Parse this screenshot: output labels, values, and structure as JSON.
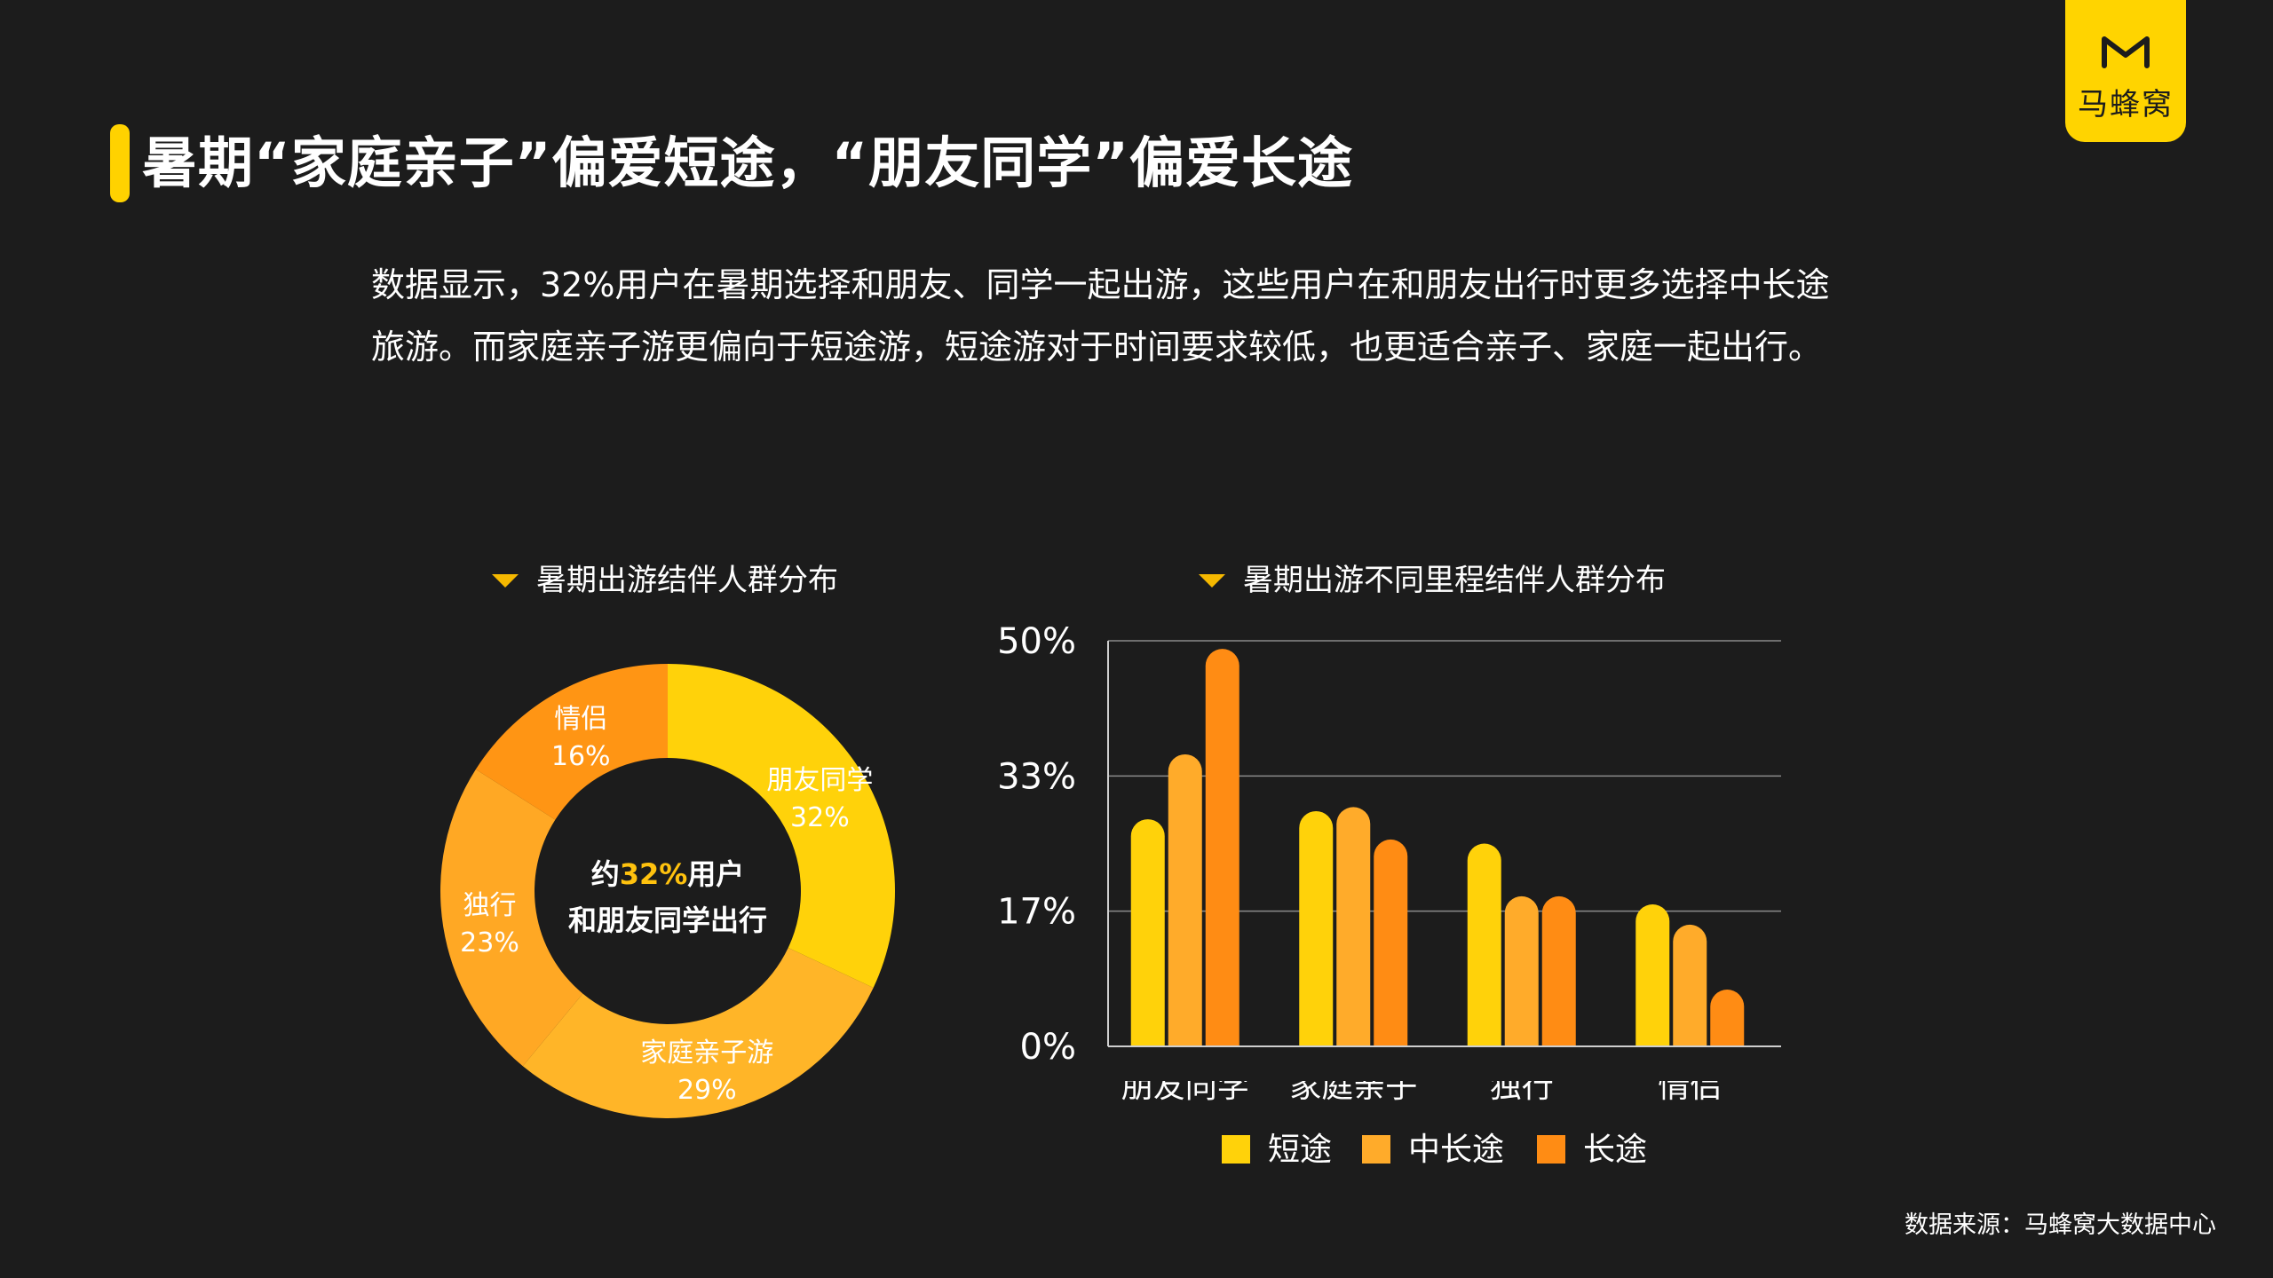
{
  "header": {
    "title": "暑期“家庭亲子”偏爱短途，“朋友同学”偏爱长途",
    "logo_text": "马蜂窝"
  },
  "intro": {
    "line1": "数据显示，32%用户在暑期选择和朋友、同学一起出游，这些用户在和朋友出行时更多选择中长途",
    "line2": "旅游。而家庭亲子游更偏向于短途游，短途游对于时间要求较低，也更适合亲子、家庭一起出行。"
  },
  "source": "数据来源：马蜂窝大数据中心",
  "colors": {
    "background": "#1c1c1c",
    "accent": "#ffd200",
    "short": "#ffd20a",
    "mid": "#ffab2a",
    "long": "#ff8c14"
  },
  "chart_data": [
    {
      "type": "pie",
      "title": "暑期出游结伴人群分布",
      "center_text": {
        "prefix": "约",
        "highlight": "32%",
        "suffix": "用户",
        "line2": "和朋友同学出行"
      },
      "slices": [
        {
          "label": "朋友同学",
          "value": 32,
          "value_label": "32%",
          "color": "#ffd20a"
        },
        {
          "label": "家庭亲子游",
          "value": 29,
          "value_label": "29%",
          "color": "#ffb528"
        },
        {
          "label": "独行",
          "value": 23,
          "value_label": "23%",
          "color": "#ffa824"
        },
        {
          "label": "情侣",
          "value": 16,
          "value_label": "16%",
          "color": "#ff9514"
        }
      ]
    },
    {
      "type": "bar",
      "title": "暑期出游不同里程结伴人群分布",
      "categories": [
        "朋友同学",
        "家庭亲子",
        "独行",
        "情侣"
      ],
      "yticks": [
        "0%",
        "17%",
        "33%",
        "50%"
      ],
      "ylim": [
        0,
        50
      ],
      "grid": true,
      "legend_position": "bottom",
      "series": [
        {
          "name": "短途",
          "color": "#ffd20a",
          "values": [
            28,
            29,
            25,
            17.5
          ]
        },
        {
          "name": "中长途",
          "color": "#ffab2a",
          "values": [
            36,
            29.5,
            18.5,
            15
          ]
        },
        {
          "name": "长途",
          "color": "#ff8c14",
          "values": [
            49,
            25.5,
            18.5,
            7
          ]
        }
      ]
    }
  ]
}
